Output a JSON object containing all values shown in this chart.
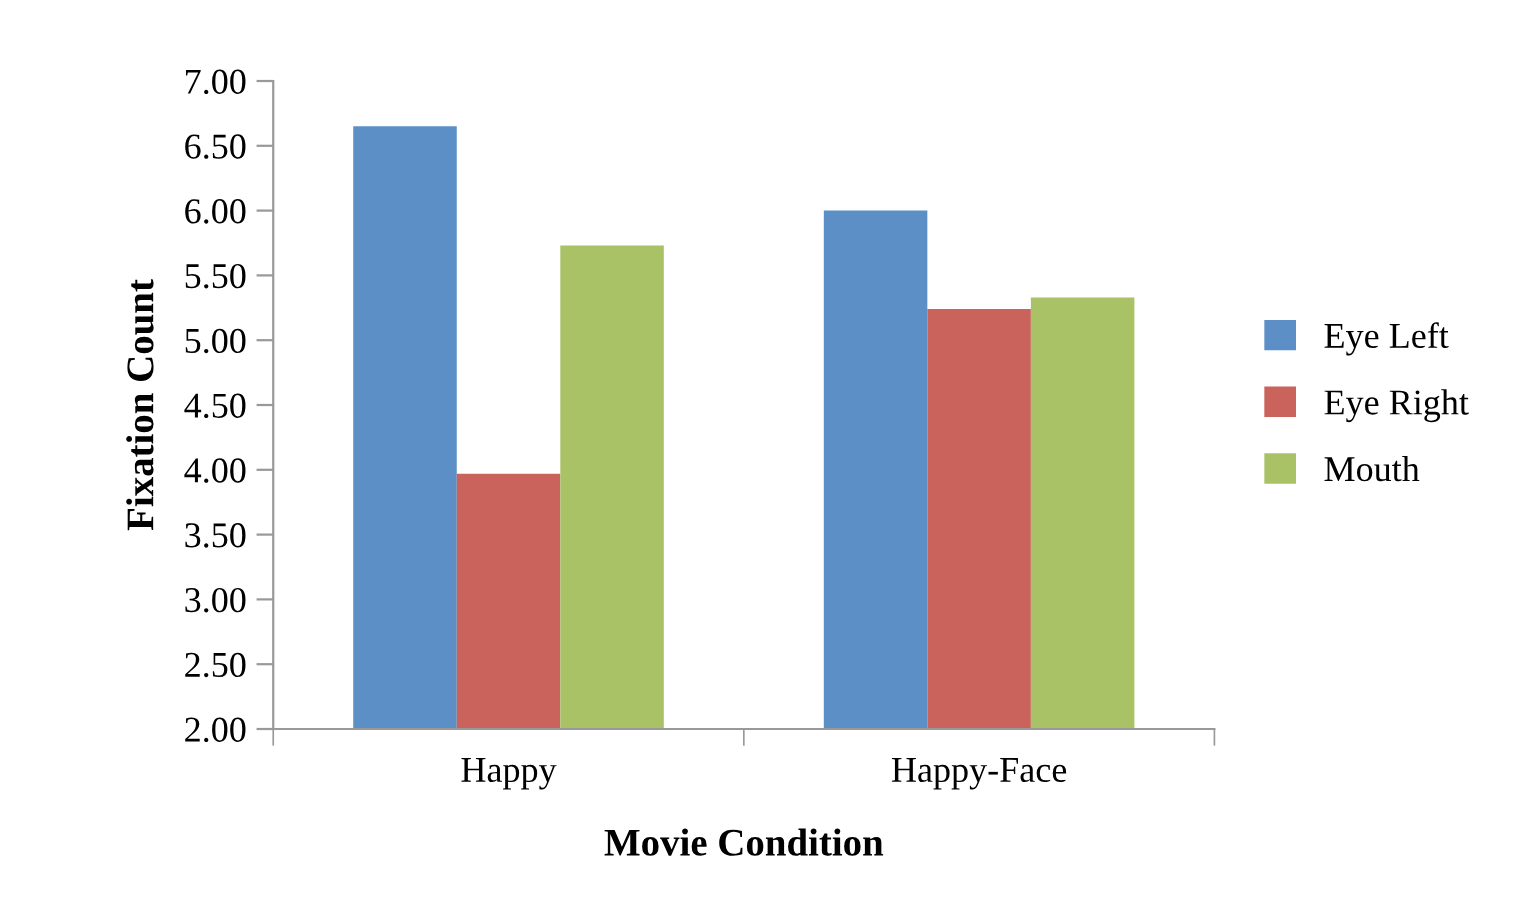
{
  "chart_data": {
    "type": "bar",
    "xlabel": "Movie Condition",
    "ylabel": "Fixation Count",
    "categories": [
      "Happy",
      "Happy-Face"
    ],
    "series": [
      {
        "name": "Eye Left",
        "color": "#5b8fc5",
        "values": [
          6.65,
          6.0
        ]
      },
      {
        "name": "Eye Right",
        "color": "#c9635b",
        "values": [
          3.97,
          5.24
        ]
      },
      {
        "name": "Mouth",
        "color": "#aac266",
        "values": [
          5.73,
          5.33
        ]
      }
    ],
    "ylim": [
      2,
      7
    ],
    "yticks": [
      {
        "value": 2,
        "label": "2.00"
      },
      {
        "value": 2.5,
        "label": "2.50"
      },
      {
        "value": 3,
        "label": "3.00"
      },
      {
        "value": 3.5,
        "label": "3.50"
      },
      {
        "value": 4,
        "label": "4.00"
      },
      {
        "value": 4.5,
        "label": "4.50"
      },
      {
        "value": 5,
        "label": "5.00"
      },
      {
        "value": 5.5,
        "label": "5.50"
      },
      {
        "value": 6,
        "label": "6.00"
      },
      {
        "value": 6.5,
        "label": "6.50"
      },
      {
        "value": 7,
        "label": "7.00"
      }
    ],
    "grid": false,
    "legend": "right"
  }
}
